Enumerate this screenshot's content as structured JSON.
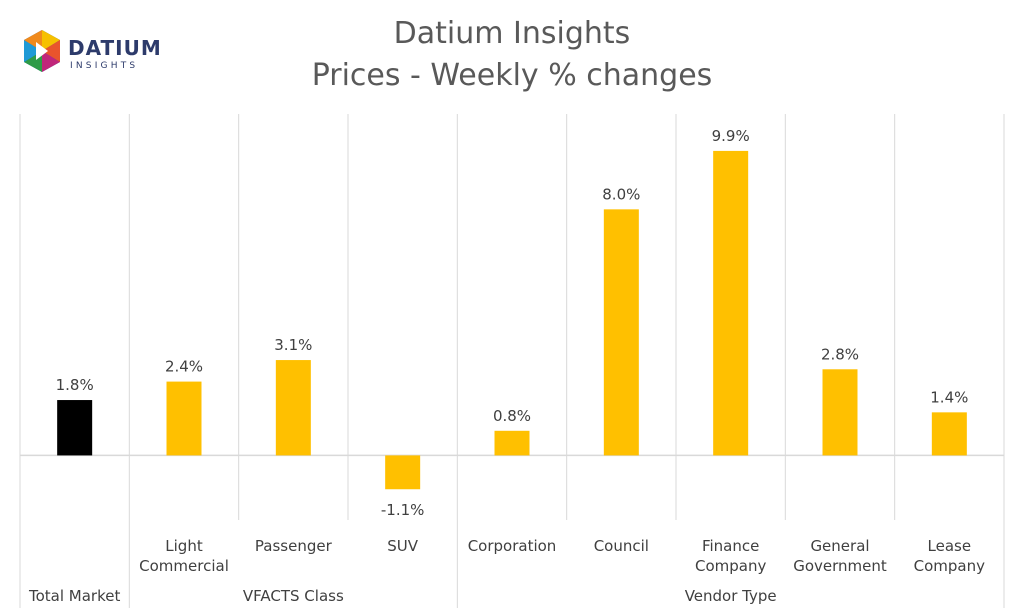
{
  "title_line1": "Datium Insights",
  "title_line2": "Prices - Weekly % changes",
  "logo": {
    "name": "DATIUM",
    "sub": "INSIGHTS",
    "icon": "datium-logo-icon"
  },
  "colors": {
    "total": "#000000",
    "bar": "#ffc000",
    "grid": "#d9d9d9",
    "text": "#404040"
  },
  "chart_data": {
    "type": "bar",
    "title": "Datium Insights",
    "subtitle": "Prices - Weekly % changes",
    "categories": [
      [
        "Total Market"
      ],
      [
        "Light",
        "Commercial"
      ],
      [
        "Passenger"
      ],
      [
        "SUV"
      ],
      [
        "Corporation"
      ],
      [
        "Council"
      ],
      [
        "Finance",
        "Company"
      ],
      [
        "General",
        "Government"
      ],
      [
        "Lease",
        "Company"
      ]
    ],
    "values": [
      1.8,
      2.4,
      3.1,
      -1.1,
      0.8,
      8.0,
      9.9,
      2.8,
      1.4
    ],
    "data_labels": [
      "1.8%",
      "2.4%",
      "3.1%",
      "-1.1%",
      "0.8%",
      "8.0%",
      "9.9%",
      "2.8%",
      "1.4%"
    ],
    "groups": [
      {
        "label": "",
        "start": 0,
        "end": 0
      },
      {
        "label": "VFACTS Class",
        "start": 1,
        "end": 3
      },
      {
        "label": "Vendor Type",
        "start": 4,
        "end": 8
      }
    ],
    "group_label_first": "Total Market",
    "ylim": [
      -2.1,
      11.1
    ],
    "grid": false,
    "legend": "none"
  }
}
